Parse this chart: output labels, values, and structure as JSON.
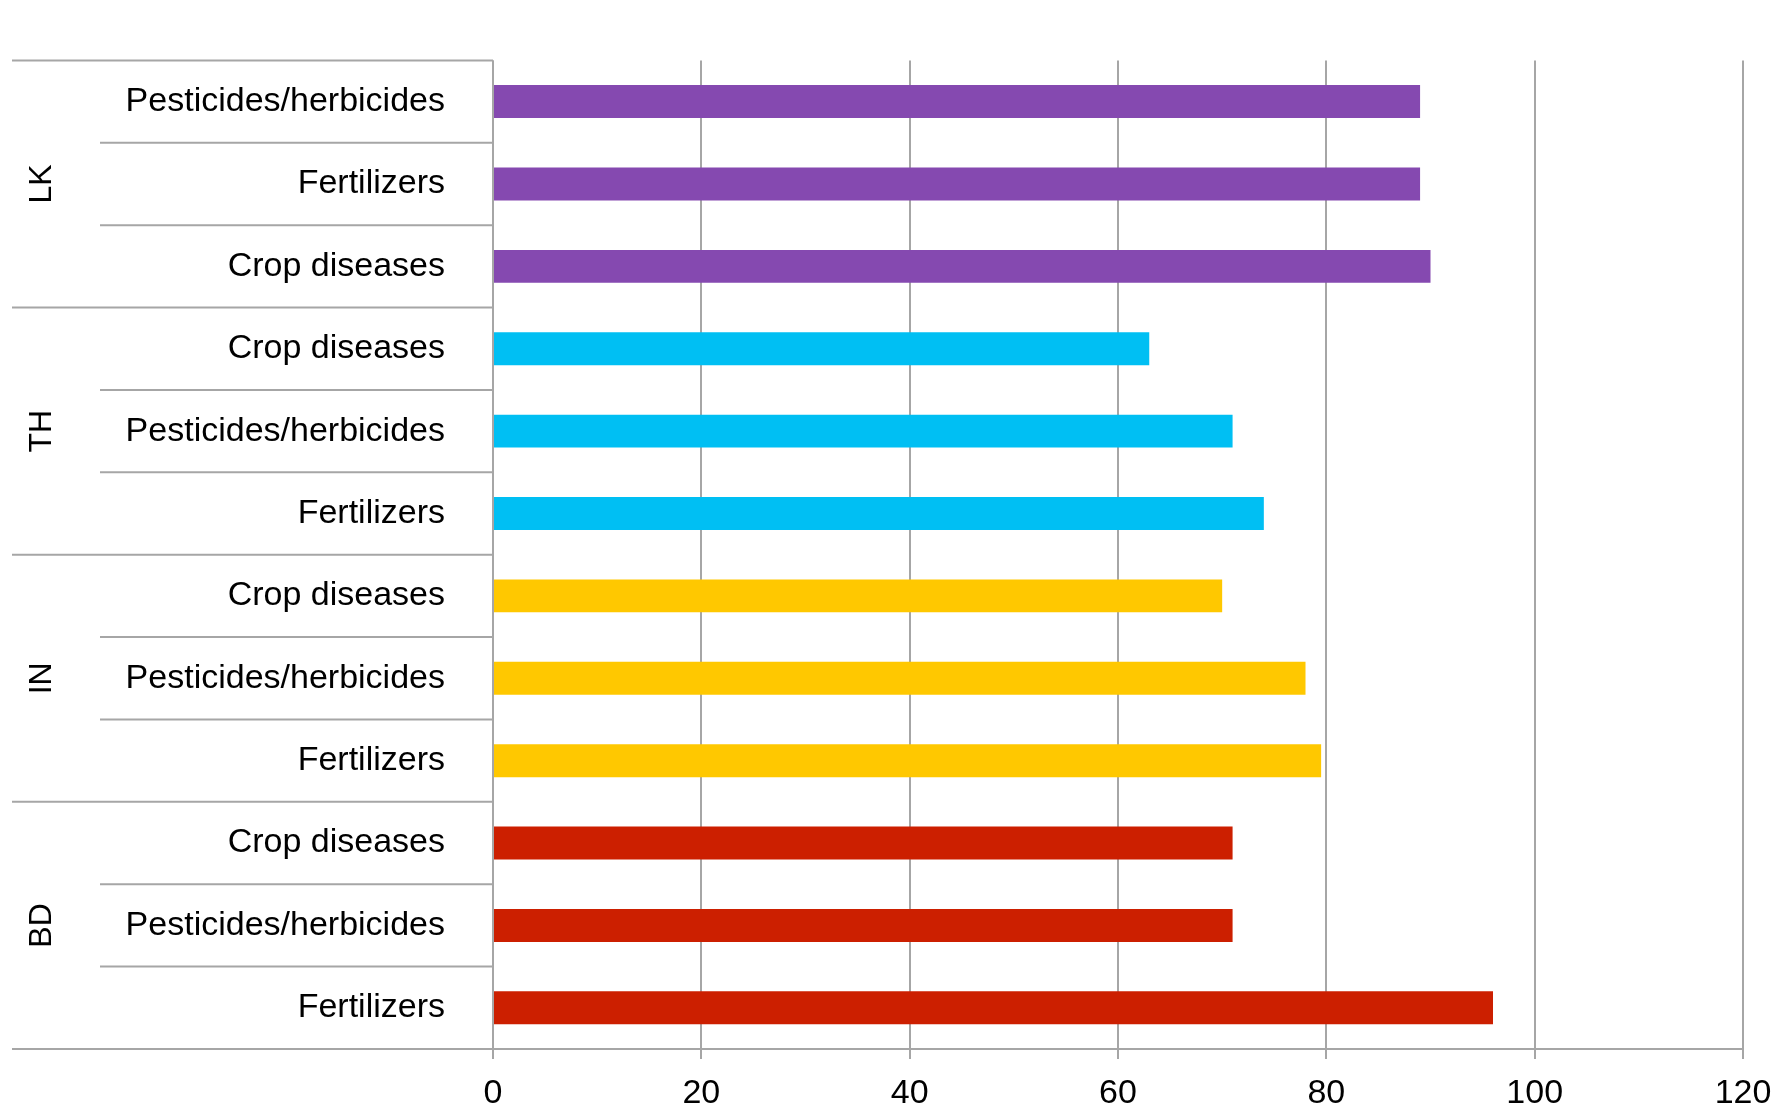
{
  "chart_data": {
    "type": "bar",
    "orientation": "horizontal",
    "categories": [
      "Pesticides/herbicides",
      "Fertilizers",
      "Crop diseases",
      "Crop diseases",
      "Pesticides/herbicides",
      "Fertilizers",
      "Crop diseases",
      "Pesticides/herbicides",
      "Fertilizers",
      "Crop diseases",
      "Pesticides/herbicides",
      "Fertilizers"
    ],
    "values": [
      89,
      89,
      90,
      63,
      71,
      74,
      70,
      78,
      79.5,
      71,
      71,
      96
    ],
    "colors": [
      "#8549b0",
      "#8549b0",
      "#8549b0",
      "#00bff3",
      "#00bff3",
      "#00bff3",
      "#ffc800",
      "#ffc800",
      "#ffc800",
      "#cc1f00",
      "#cc1f00",
      "#cc1f00"
    ],
    "annotations": [
      "LK",
      "TH",
      "IN",
      "BD"
    ],
    "xlim": [
      0,
      120
    ],
    "xticks": [
      0,
      20,
      40,
      60,
      80,
      100,
      120
    ],
    "grid": "x",
    "legend": false
  }
}
